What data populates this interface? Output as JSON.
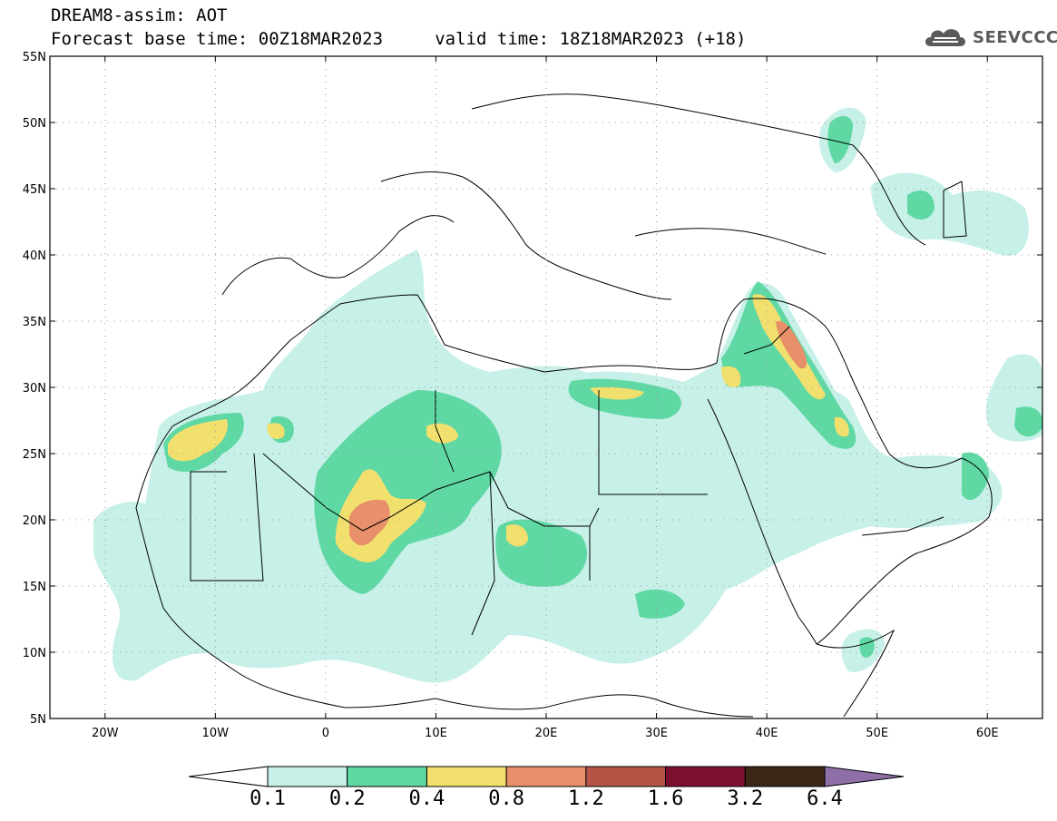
{
  "header": {
    "title": "DREAM8-assim: AOT",
    "subtitle": "Forecast base time: 00Z18MAR2023     valid time: 18Z18MAR2023 (+18)",
    "logo_text": "SEEVCCC",
    "logo_icon": "cloud-icon"
  },
  "map": {
    "lon_range": [
      -25,
      65
    ],
    "lat_range": [
      5,
      55
    ],
    "lat_ticks": [
      {
        "lat": 55,
        "label": "55N"
      },
      {
        "lat": 50,
        "label": "50N"
      },
      {
        "lat": 45,
        "label": "45N"
      },
      {
        "lat": 40,
        "label": "40N"
      },
      {
        "lat": 35,
        "label": "35N"
      },
      {
        "lat": 30,
        "label": "30N"
      },
      {
        "lat": 25,
        "label": "25N"
      },
      {
        "lat": 20,
        "label": "20N"
      },
      {
        "lat": 15,
        "label": "15N"
      },
      {
        "lat": 10,
        "label": "10N"
      },
      {
        "lat": 5,
        "label": "5N"
      }
    ],
    "lon_ticks": [
      {
        "lon": -20,
        "label": "20W"
      },
      {
        "lon": -10,
        "label": "10W"
      },
      {
        "lon": 0,
        "label": "0"
      },
      {
        "lon": 10,
        "label": "10E"
      },
      {
        "lon": 20,
        "label": "20E"
      },
      {
        "lon": 30,
        "label": "30E"
      },
      {
        "lon": 40,
        "label": "40E"
      },
      {
        "lon": 50,
        "label": "50E"
      },
      {
        "lon": 60,
        "label": "60E"
      }
    ]
  },
  "colorbar": {
    "levels": [
      "0.1",
      "0.2",
      "0.4",
      "0.8",
      "1.2",
      "1.6",
      "3.2",
      "6.4"
    ],
    "colors": [
      "#ffffff",
      "#c6f0e8",
      "#5fd8a4",
      "#f2e06e",
      "#e8906a",
      "#b45446",
      "#7a0f30",
      "#3b2618",
      "#8f6fa8"
    ]
  }
}
